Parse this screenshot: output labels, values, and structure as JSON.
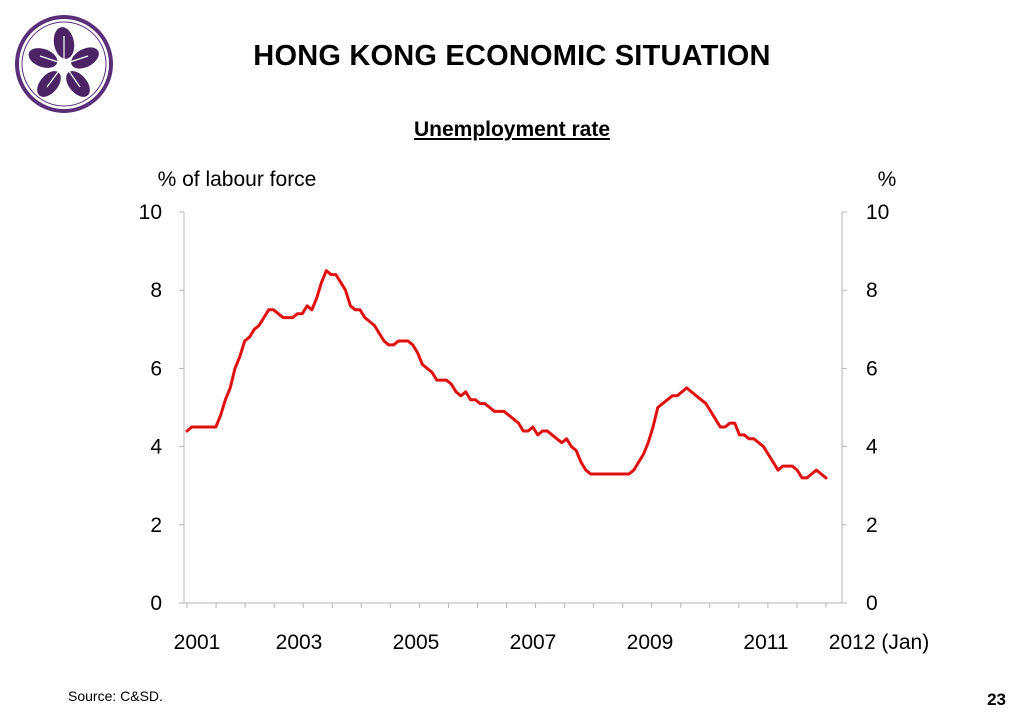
{
  "header": {
    "title": "HONG KONG ECONOMIC SITUATION",
    "logo_icon": "bauhinia-flower-emblem-icon",
    "brand_color": "#4b2466"
  },
  "footer": {
    "source": "Source: C&SD.",
    "page_number": "23"
  },
  "chart_data": {
    "type": "line",
    "title": "Unemployment rate",
    "ylabel_left": "% of labour force",
    "ylabel_right": "%",
    "ylim": [
      0,
      10
    ],
    "yticks": [
      "0",
      "2",
      "4",
      "6",
      "8",
      "10"
    ],
    "xtick_labels": [
      "2001",
      "2003",
      "2005",
      "2007",
      "2009",
      "2011",
      "2012 (Jan)"
    ],
    "x_start": "2001-01",
    "x_end": "2012-01",
    "grid": false,
    "line_color": "#e01010",
    "series": [
      {
        "values": [
          4.4,
          4.5,
          4.5,
          4.5,
          4.5,
          4.5,
          4.5,
          4.8,
          5.2,
          5.5,
          6.0,
          6.3,
          6.7,
          6.8,
          7.0,
          7.1,
          7.3,
          7.5,
          7.5,
          7.4,
          7.3,
          7.3,
          7.3,
          7.4,
          7.4,
          7.6,
          7.5,
          7.8,
          8.2,
          8.5,
          8.4,
          8.4,
          8.2,
          8.0,
          7.6,
          7.5,
          7.5,
          7.3,
          7.2,
          7.1,
          6.9,
          6.7,
          6.6,
          6.6,
          6.7,
          6.7,
          6.7,
          6.6,
          6.4,
          6.1,
          6.0,
          5.9,
          5.7,
          5.7,
          5.7,
          5.6,
          5.4,
          5.3,
          5.4,
          5.2,
          5.2,
          5.1,
          5.1,
          5.0,
          4.9,
          4.9,
          4.9,
          4.8,
          4.7,
          4.6,
          4.4,
          4.4,
          4.5,
          4.3,
          4.4,
          4.4,
          4.3,
          4.2,
          4.1,
          4.2,
          4.0,
          3.9,
          3.6,
          3.4,
          3.3,
          3.3,
          3.3,
          3.3,
          3.3,
          3.3,
          3.3,
          3.3,
          3.3,
          3.4,
          3.6,
          3.8,
          4.1,
          4.5,
          5.0,
          5.1,
          5.2,
          5.3,
          5.3,
          5.4,
          5.5,
          5.4,
          5.3,
          5.2,
          5.1,
          4.9,
          4.7,
          4.5,
          4.5,
          4.6,
          4.6,
          4.3,
          4.3,
          4.2,
          4.2,
          4.1,
          4.0,
          3.8,
          3.6,
          3.4,
          3.5,
          3.5,
          3.5,
          3.4,
          3.2,
          3.2,
          3.3,
          3.4,
          3.3,
          3.2
        ]
      }
    ]
  }
}
